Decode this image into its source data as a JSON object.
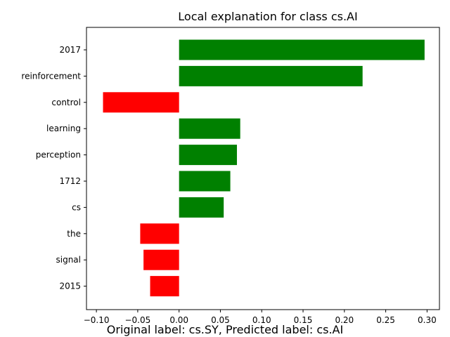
{
  "chart_data": {
    "type": "bar",
    "orientation": "horizontal",
    "title": "Local explanation for class cs.AI",
    "xlabel": "",
    "ylabel": "",
    "caption": "Original label: cs.SY, Predicted label: cs.AI",
    "categories": [
      "2017",
      "reinforcement",
      "control",
      "learning",
      "perception",
      "1712",
      "cs",
      "the",
      "signal",
      "2015"
    ],
    "values": [
      0.297,
      0.222,
      -0.092,
      0.074,
      0.07,
      0.062,
      0.054,
      -0.047,
      -0.043,
      -0.035
    ],
    "xlim": [
      -0.112,
      0.315
    ],
    "xticks": [
      -0.1,
      -0.05,
      0.0,
      0.05,
      0.1,
      0.15,
      0.2,
      0.25,
      0.3
    ],
    "xtick_labels": [
      "−0.10",
      "−0.05",
      "0.00",
      "0.05",
      "0.10",
      "0.15",
      "0.20",
      "0.25",
      "0.30"
    ],
    "positive_color": "#008000",
    "negative_color": "#ff0000",
    "grid": false,
    "legend": "none"
  }
}
